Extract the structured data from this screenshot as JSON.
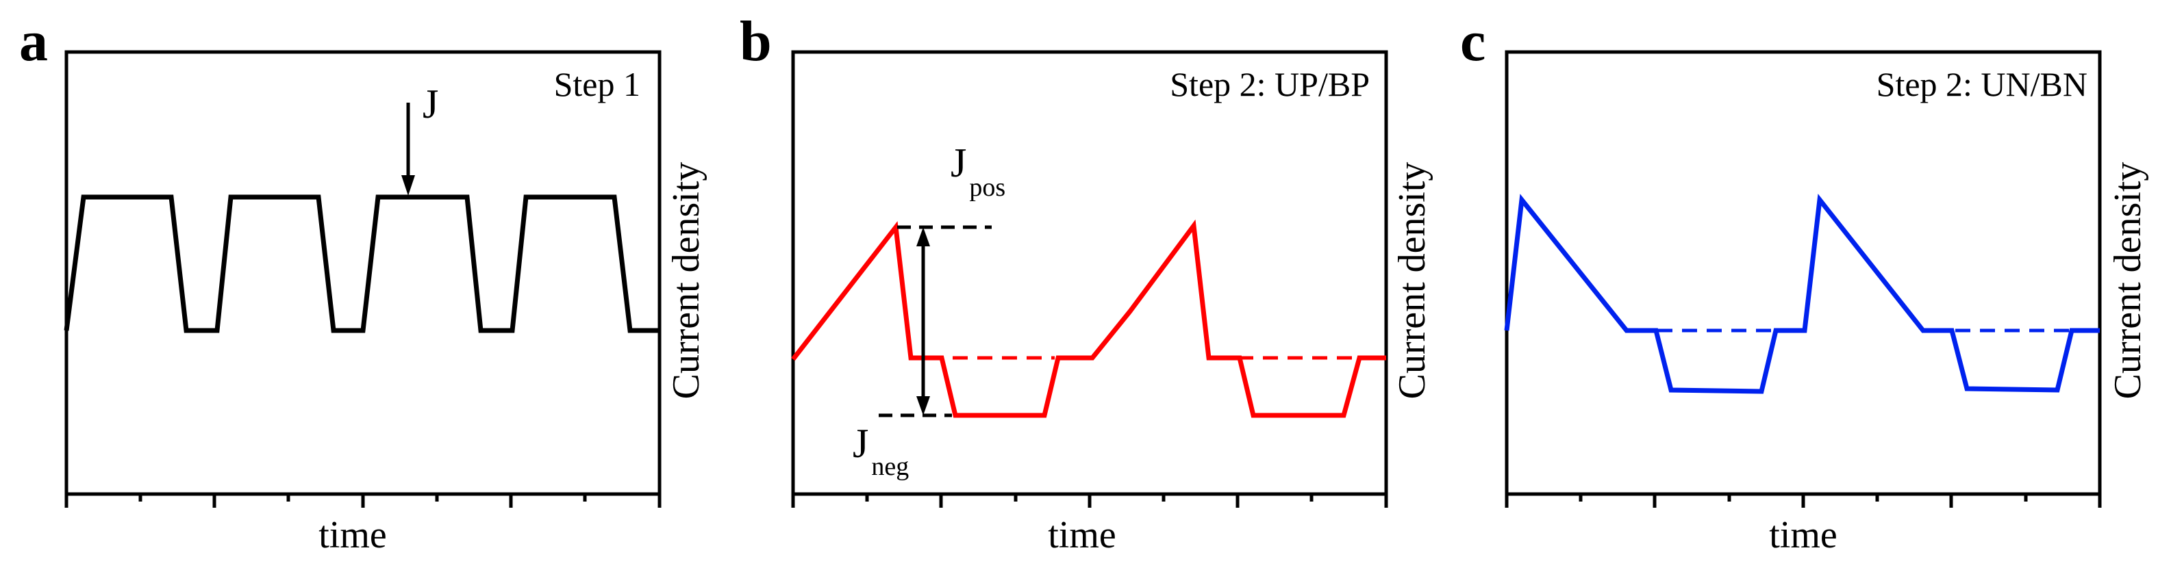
{
  "figure": {
    "panels": [
      {
        "letter": "a",
        "step_label": "Step 1",
        "xlabel": "time",
        "ylabel": "Current density",
        "color": "#000000",
        "annotation": "J"
      },
      {
        "letter": "b",
        "step_label": "Step 2: UP/BP",
        "xlabel": "time",
        "ylabel": "Current density",
        "color": "#ff0000",
        "annotation_pos": {
          "main": "J",
          "sub": "pos"
        },
        "annotation_neg": {
          "main": "J",
          "sub": "neg"
        }
      },
      {
        "letter": "c",
        "step_label": "Step 2: UN/BN",
        "xlabel": "time",
        "ylabel": "Current density",
        "color": "#0022ee"
      }
    ]
  }
}
